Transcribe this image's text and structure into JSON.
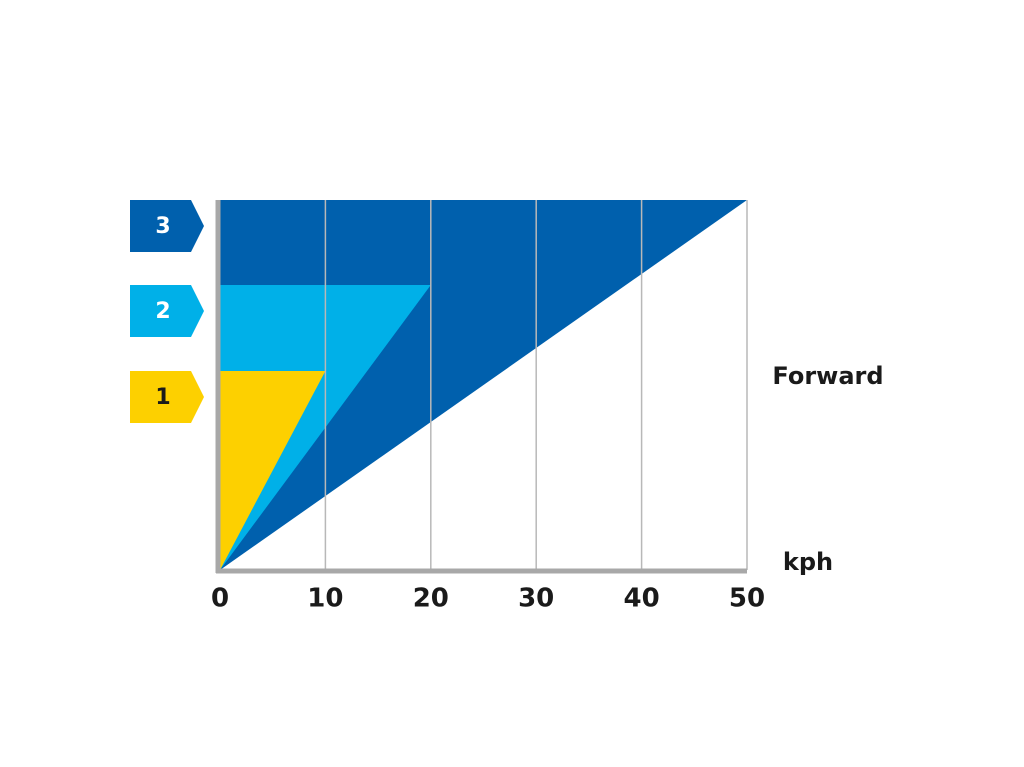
{
  "chart_data": {
    "type": "gear-range",
    "annotation": "Forward",
    "x_label": "kph",
    "xlim": [
      0,
      50
    ],
    "xticks": [
      0,
      10,
      20,
      30,
      40,
      50
    ],
    "grid": true,
    "series": [
      {
        "name": "1",
        "color": "#fdd000",
        "label_color": "#1a1a1a",
        "values": [
          10
        ]
      },
      {
        "name": "2",
        "color": "#00b0e8",
        "label_color": "#ffffff",
        "values": [
          20
        ]
      },
      {
        "name": "3",
        "color": "#0060ad",
        "label_color": "#ffffff",
        "values": [
          50
        ]
      }
    ]
  }
}
